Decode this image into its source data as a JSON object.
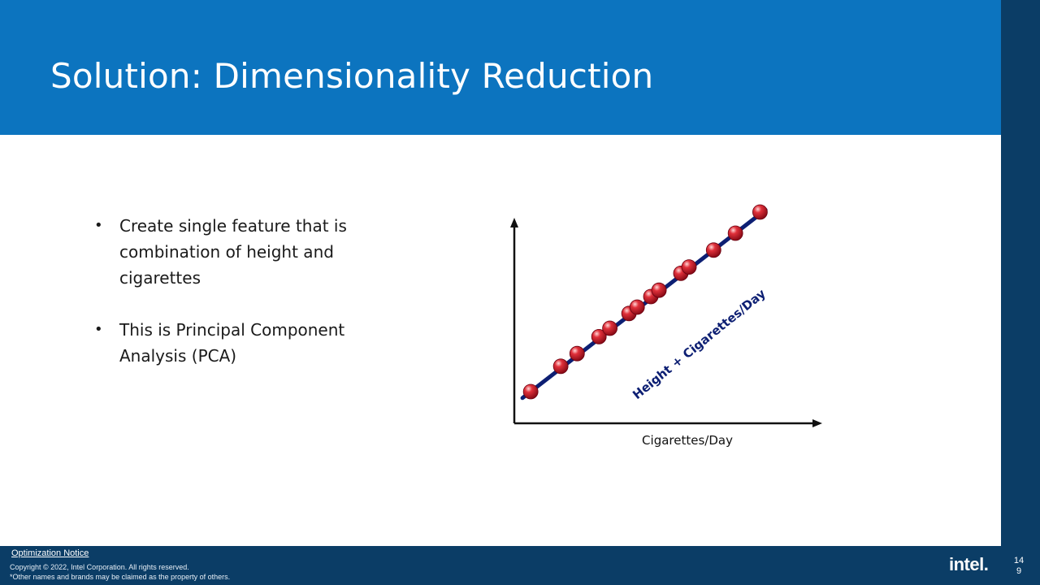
{
  "slide": {
    "title": "Solution: Dimensionality Reduction",
    "bullets": [
      "Create single feature that is combination of height and cigarettes",
      "This is Principal Component Analysis (PCA)"
    ],
    "bullet_symbol": "•"
  },
  "colors": {
    "header": "#0c74bf",
    "sidebar": "#0b3d66",
    "footer": "#0b3d66",
    "line": "#0d1f73",
    "point": "#c8102e",
    "axis": "#111111"
  },
  "chart_data": {
    "type": "scatter",
    "title": "",
    "xlabel": "Cigarettes/Day",
    "ylabel": "",
    "line_label": "Height + Cigarettes/Day",
    "xlim": [
      0,
      100
    ],
    "ylim": [
      0,
      100
    ],
    "points": [
      {
        "x": 6,
        "y": 15
      },
      {
        "x": 17,
        "y": 27
      },
      {
        "x": 23,
        "y": 33
      },
      {
        "x": 31,
        "y": 41
      },
      {
        "x": 35,
        "y": 45
      },
      {
        "x": 42,
        "y": 52
      },
      {
        "x": 45,
        "y": 55
      },
      {
        "x": 50,
        "y": 60
      },
      {
        "x": 53,
        "y": 63
      },
      {
        "x": 61,
        "y": 71
      },
      {
        "x": 64,
        "y": 74
      },
      {
        "x": 73,
        "y": 82
      },
      {
        "x": 81,
        "y": 90
      },
      {
        "x": 90,
        "y": 100
      }
    ],
    "fit_line": {
      "x0": 3,
      "y0": 12,
      "x1": 92,
      "y1": 101
    }
  },
  "footer": {
    "optimization_notice": "Optimization Notice",
    "copyright_line1": "Copyright ©  2022, Intel Corporation. All rights reserved.",
    "copyright_line2": "*Other names and brands may be claimed as the property of others.",
    "logo": "intel.",
    "page_number": "149"
  }
}
